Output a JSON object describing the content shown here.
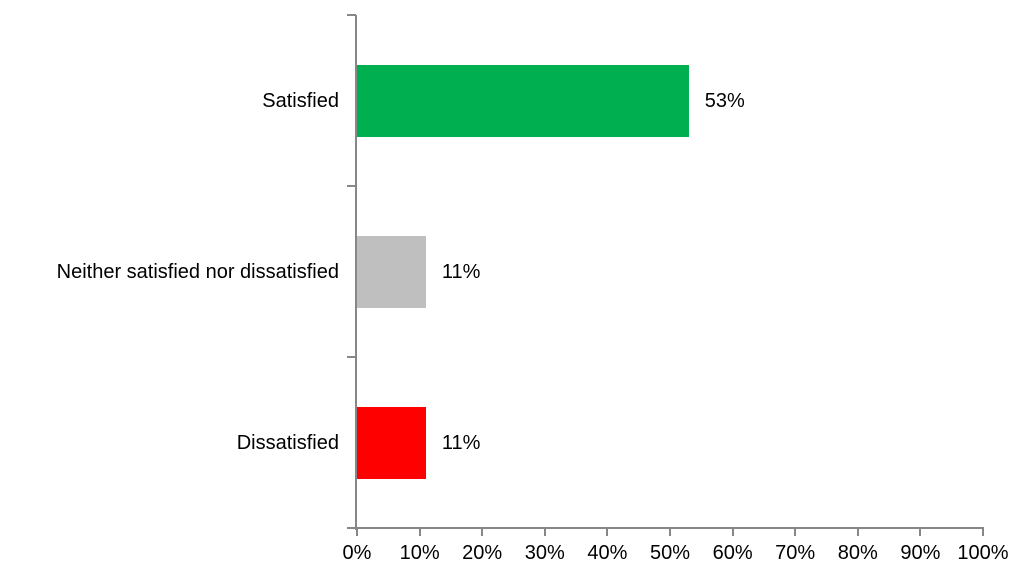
{
  "chart_data": {
    "type": "bar",
    "orientation": "horizontal",
    "title": "",
    "categories": [
      "Satisfied",
      "Neither satisfied nor dissatisfied",
      "Dissatisfied"
    ],
    "values": [
      53,
      11,
      11
    ],
    "value_labels": [
      "53%",
      "11%",
      "11%"
    ],
    "bar_colors": [
      "#00B050",
      "#BFBFBF",
      "#FF0000"
    ],
    "xlim": [
      0,
      100
    ],
    "x_tick_values": [
      0,
      10,
      20,
      30,
      40,
      50,
      60,
      70,
      80,
      90,
      100
    ],
    "x_tick_labels": [
      "0%",
      "10%",
      "20%",
      "30%",
      "40%",
      "50%",
      "60%",
      "70%",
      "80%",
      "90%",
      "100%"
    ],
    "grid": false,
    "legend": false,
    "data_labels_shown": true,
    "colors": {
      "axis": "#878787",
      "text": "#000000",
      "background": "#FFFFFF"
    }
  }
}
